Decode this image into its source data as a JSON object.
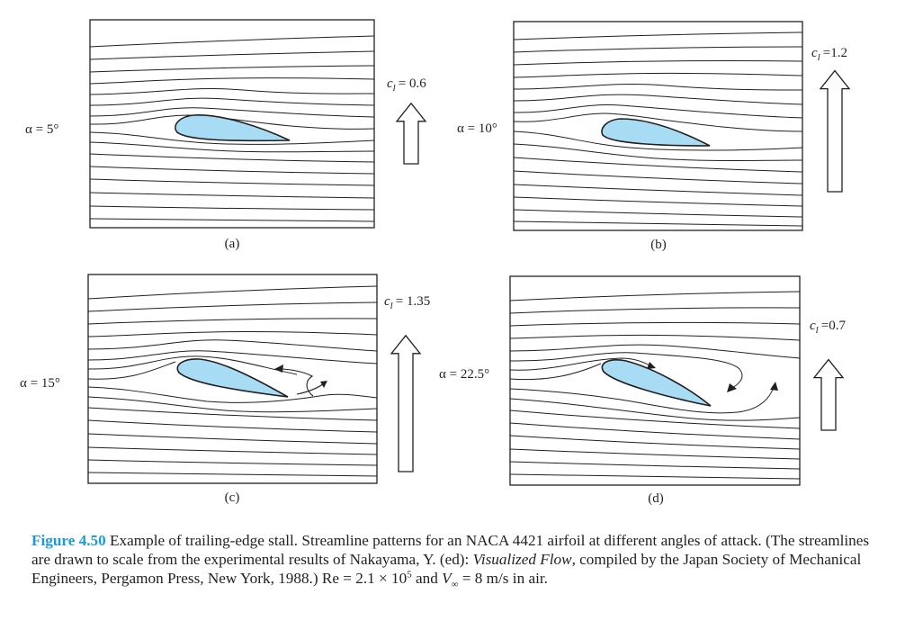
{
  "panels": [
    {
      "id": "a",
      "alpha_label": "α = 5°",
      "cl_symbol": "c",
      "cl_subscript": "l",
      "cl_value": "= 0.6",
      "cl": 0.6,
      "panel_label": "(a)",
      "angle_of_attack_deg": 5
    },
    {
      "id": "b",
      "alpha_label": "α = 10°",
      "cl_symbol": "c",
      "cl_subscript": "l",
      "cl_value": "=1.2",
      "cl": 1.2,
      "panel_label": "(b)",
      "angle_of_attack_deg": 10
    },
    {
      "id": "c",
      "alpha_label": "α = 15°",
      "cl_symbol": "c",
      "cl_subscript": "l",
      "cl_value": "= 1.35",
      "cl": 1.35,
      "panel_label": "(c)",
      "angle_of_attack_deg": 15
    },
    {
      "id": "d",
      "alpha_label": "α = 22.5°",
      "cl_symbol": "c",
      "cl_subscript": "l",
      "cl_value": "=0.7",
      "cl": 0.7,
      "panel_label": "(d)",
      "angle_of_attack_deg": 22.5
    }
  ],
  "caption": {
    "figure_label": "Figure 4.50",
    "text_1": " Example of trailing-edge stall. Streamline patterns for an NACA 4421 airfoil at different angles of attack. (The streamlines are drawn to scale from the experimental results of Nakayama, Y. (ed): ",
    "italic_title": "Visualized Flow",
    "text_2": ", compiled by the Japan Society of Mechanical Engineers, Pergamon Press, New York, 1988.) Re = 2.1 × 10",
    "exponent": "5",
    "text_3": " and ",
    "v_symbol": "V",
    "v_subscript": "∞",
    "text_4": " = 8 m/s in air."
  },
  "colors": {
    "airfoil_fill": "#a8dcf4",
    "line": "#231f20",
    "caption_label": "#1c9ad6"
  }
}
